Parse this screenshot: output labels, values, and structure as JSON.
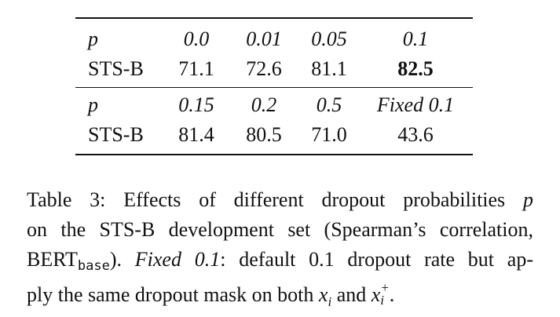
{
  "table": {
    "row_label_p": "p",
    "row_label_stsb": "STS-B",
    "top": {
      "p_values": [
        "0.0",
        "0.01",
        "0.05",
        "0.1"
      ],
      "stsb_values": [
        "71.1",
        "72.6",
        "81.1",
        "82.5"
      ]
    },
    "bottom": {
      "p_values": [
        "0.15",
        "0.2",
        "0.5",
        "Fixed 0.1"
      ],
      "stsb_values": [
        "81.4",
        "80.5",
        "71.0",
        "43.6"
      ]
    }
  },
  "caption": {
    "line1": "Table 3:  Effects of different dropout probabilities ",
    "line1_var": "p",
    "line2": "on the STS-B development set (Spearman’s correlation,",
    "line3_pre": "BERT",
    "line3_sub": "base",
    "line3_mid": "). ",
    "line3_italic": "Fixed 0.1",
    "line3_post": ": default 0.1 dropout rate but ap-",
    "line4_pre": "ply the same dropout mask on both ",
    "x_var": "x",
    "x_sub_i": "i",
    "line4_and": " and ",
    "x_sup_plus": "+",
    "line4_end": "."
  }
}
